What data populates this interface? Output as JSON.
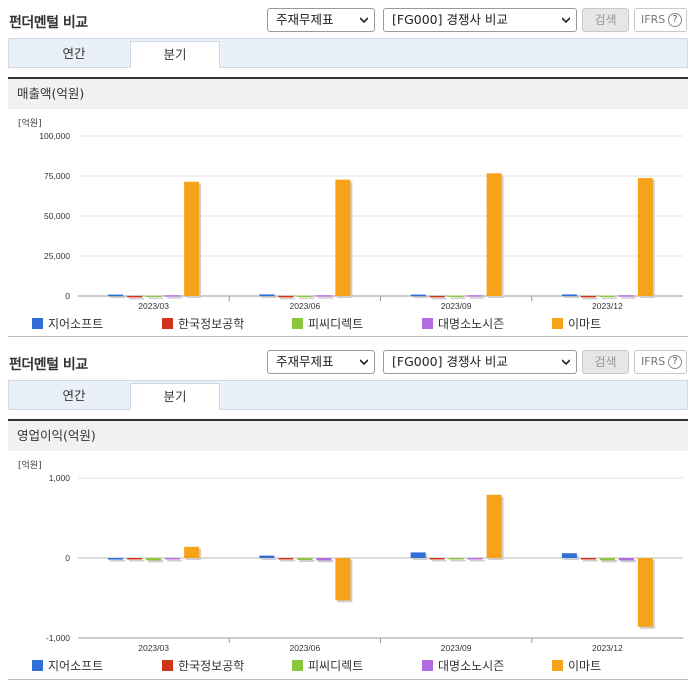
{
  "panels": [
    {
      "title": "펀더멘털 비교",
      "select_type": "주재무제표",
      "select_peer": "[FG000] 경쟁사 비교",
      "search_label": "검색",
      "ifrs_label": "IFRS",
      "help_glyph": "?",
      "tabs": [
        {
          "label": "연간"
        },
        {
          "label": "분기"
        }
      ],
      "active_tab": "분기",
      "chart_caption": "매출액(억원)"
    },
    {
      "title": "펀더멘털 비교",
      "select_type": "주재무제표",
      "select_peer": "[FG000] 경쟁사 비교",
      "search_label": "검색",
      "ifrs_label": "IFRS",
      "help_glyph": "?",
      "tabs": [
        {
          "label": "연간"
        },
        {
          "label": "분기"
        }
      ],
      "active_tab": "분기",
      "chart_caption": "영업이익(억원)"
    }
  ],
  "colors": {
    "지어소프트": "#2f6fd6",
    "한국정보공학": "#d0351b",
    "피씨디렉트": "#8cc63f",
    "대명소노시즌": "#b36be0",
    "이마트": "#f7a21b"
  },
  "chart_data": [
    {
      "type": "bar",
      "unit_label": "[억원]",
      "categories": [
        "2023/03",
        "2023/06",
        "2023/09",
        "2023/12"
      ],
      "ylim": [
        0,
        100000
      ],
      "yticks": [
        "0",
        "25,000",
        "50,000",
        "75,000",
        "100,000"
      ],
      "ytick_values": [
        0,
        25000,
        50000,
        75000,
        100000
      ],
      "series": [
        {
          "name": "지어소프트",
          "values": [
            900,
            1000,
            900,
            1000
          ]
        },
        {
          "name": "한국정보공학",
          "values": [
            60,
            60,
            60,
            60
          ]
        },
        {
          "name": "피씨디렉트",
          "values": [
            300,
            300,
            300,
            300
          ]
        },
        {
          "name": "대명소노시즌",
          "values": [
            500,
            500,
            500,
            500
          ]
        },
        {
          "name": "이마트",
          "values": [
            71400,
            72700,
            76700,
            73700
          ]
        }
      ]
    },
    {
      "type": "bar",
      "unit_label": "[억원]",
      "categories": [
        "2023/03",
        "2023/06",
        "2023/09",
        "2023/12"
      ],
      "ylim": [
        -1000,
        1000
      ],
      "yticks": [
        "-1,000",
        "0",
        "1,000"
      ],
      "ytick_values": [
        -1000,
        0,
        1000
      ],
      "series": [
        {
          "name": "지어소프트",
          "values": [
            -20,
            30,
            70,
            60
          ]
        },
        {
          "name": "한국정보공학",
          "values": [
            -5,
            -5,
            -15,
            -5
          ]
        },
        {
          "name": "피씨디렉트",
          "values": [
            -30,
            -25,
            -10,
            -30
          ]
        },
        {
          "name": "대명소노시즌",
          "values": [
            -10,
            -30,
            -5,
            -30
          ]
        },
        {
          "name": "이마트",
          "values": [
            140,
            -530,
            790,
            -860
          ]
        }
      ]
    }
  ]
}
